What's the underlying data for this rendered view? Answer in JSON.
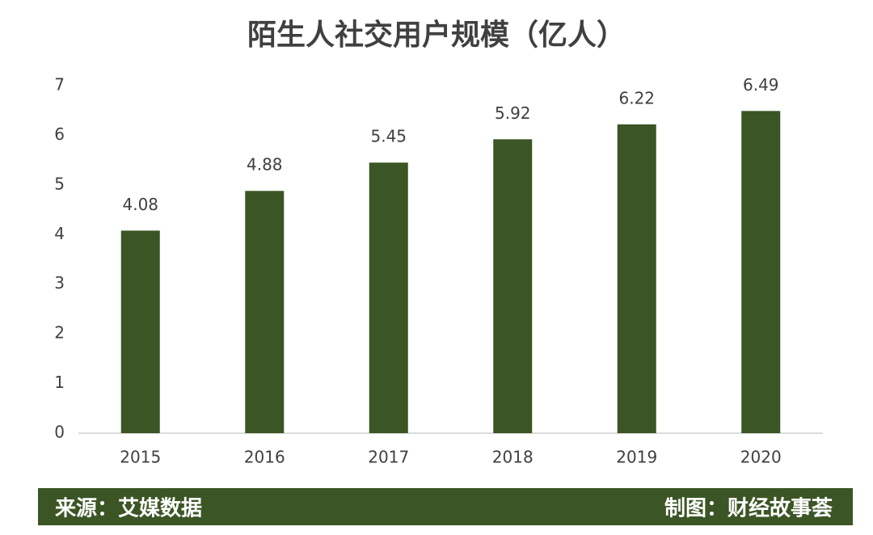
{
  "chart_data": {
    "type": "bar",
    "title": "陌生人社交用户规模（亿人）",
    "categories": [
      "2015",
      "2016",
      "2017",
      "2018",
      "2019",
      "2020"
    ],
    "values": [
      4.08,
      4.88,
      5.45,
      5.92,
      6.22,
      6.49
    ],
    "color": "#3b5525",
    "ylim": [
      0,
      7
    ],
    "yticks": [
      0,
      1,
      2,
      3,
      4,
      5,
      6,
      7
    ],
    "grid": false,
    "source": "来源：艾媒数据",
    "credit": "制图：财经故事荟"
  }
}
